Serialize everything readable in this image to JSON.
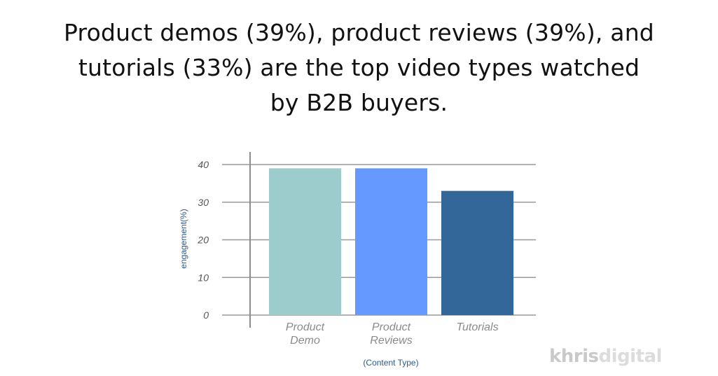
{
  "headline": {
    "line1": "Product demos (39%), product reviews (39%), and",
    "line2": "tutorials (33%) are the top video types watched",
    "line3": "by B2B buyers."
  },
  "chart_data": {
    "type": "bar",
    "categories": [
      [
        "Product",
        "Demo"
      ],
      [
        "Product",
        "Reviews"
      ],
      [
        "Tutorials"
      ]
    ],
    "values": [
      39,
      39,
      33
    ],
    "colors": [
      "#9ccccc",
      "#6699ff",
      "#336699"
    ],
    "xlabel": "(Content Type)",
    "ylabel": "engagement(%)",
    "ylim": [
      0,
      40
    ],
    "yticks": [
      0,
      10,
      20,
      30,
      40
    ],
    "grid": true,
    "gridline_color": "#999999"
  },
  "watermark": {
    "part1": "khris",
    "part2": "digital"
  }
}
